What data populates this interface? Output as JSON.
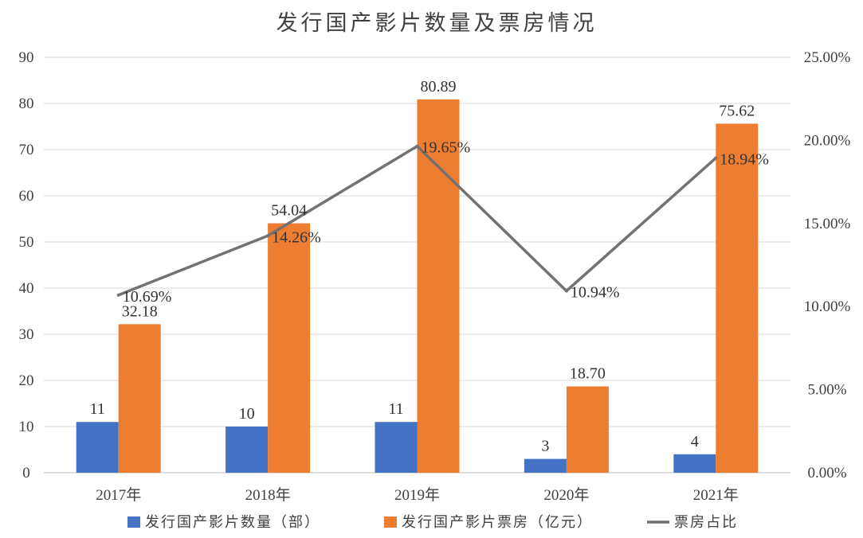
{
  "chart_data": {
    "type": "bar",
    "title": "发行国产影片数量及票房情况",
    "categories": [
      "2017年",
      "2018年",
      "2019年",
      "2020年",
      "2021年"
    ],
    "series": [
      {
        "name": "发行国产影片数量（部）",
        "kind": "bar",
        "axis": "left",
        "color": "#4472C4",
        "values": [
          11,
          10,
          11,
          3,
          4
        ],
        "labels": [
          "11",
          "10",
          "11",
          "3",
          "4"
        ]
      },
      {
        "name": "发行国产影片票房（亿元）",
        "kind": "bar",
        "axis": "left",
        "color": "#ED7D31",
        "values": [
          32.18,
          54.04,
          80.89,
          18.7,
          75.62
        ],
        "labels": [
          "32.18",
          "54.04",
          "80.89",
          "18.70",
          "75.62"
        ]
      },
      {
        "name": "票房占比",
        "kind": "line",
        "axis": "right",
        "color": "#767171",
        "values": [
          10.69,
          14.26,
          19.65,
          10.94,
          18.94
        ],
        "labels": [
          "10.69%",
          "14.26%",
          "19.65%",
          "10.94%",
          "18.94%"
        ]
      }
    ],
    "y_left": {
      "min": 0,
      "max": 90,
      "ticks": [
        "0",
        "10",
        "20",
        "30",
        "40",
        "50",
        "60",
        "70",
        "80",
        "90"
      ]
    },
    "y_right": {
      "min": 0,
      "max": 25,
      "unit": "%",
      "ticks": [
        "0.00%",
        "5.00%",
        "10.00%",
        "15.00%",
        "20.00%",
        "25.00%"
      ]
    },
    "grid": true,
    "legend_position": "bottom"
  }
}
